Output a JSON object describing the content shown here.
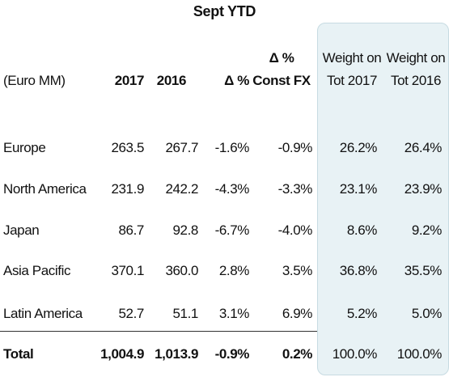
{
  "title": "Sept YTD",
  "header": {
    "unit": "(Euro MM)",
    "col_2017": "2017",
    "col_2016": "2016",
    "col_delta": "Δ %",
    "col_constfx_line1": "Δ %",
    "col_constfx_line2": "Const FX",
    "col_w2017_line1": "Weight on",
    "col_w2017_line2": "Tot 2017",
    "col_w2016_line1": "Weight on",
    "col_w2016_line2": "Tot 2016"
  },
  "rows": [
    {
      "region": "Europe",
      "v2017": "263.5",
      "v2016": "267.7",
      "delta": "-1.6%",
      "constfx": "-0.9%",
      "w2017": "26.2%",
      "w2016": "26.4%"
    },
    {
      "region": "North America",
      "v2017": "231.9",
      "v2016": "242.2",
      "delta": "-4.3%",
      "constfx": "-3.3%",
      "w2017": "23.1%",
      "w2016": "23.9%"
    },
    {
      "region": "Japan",
      "v2017": "86.7",
      "v2016": "92.8",
      "delta": "-6.7%",
      "constfx": "-4.0%",
      "w2017": "8.6%",
      "w2016": "9.2%"
    },
    {
      "region": "Asia Pacific",
      "v2017": "370.1",
      "v2016": "360.0",
      "delta": "2.8%",
      "constfx": "3.5%",
      "w2017": "36.8%",
      "w2016": "35.5%"
    },
    {
      "region": "Latin America",
      "v2017": "52.7",
      "v2016": "51.1",
      "delta": "3.1%",
      "constfx": "6.9%",
      "w2017": "5.2%",
      "w2016": "5.0%"
    }
  ],
  "total": {
    "region": "Total",
    "v2017": "1,004.9",
    "v2016": "1,013.9",
    "delta": "-0.9%",
    "constfx": "0.2%",
    "w2017": "100.0%",
    "w2016": "100.0%"
  }
}
